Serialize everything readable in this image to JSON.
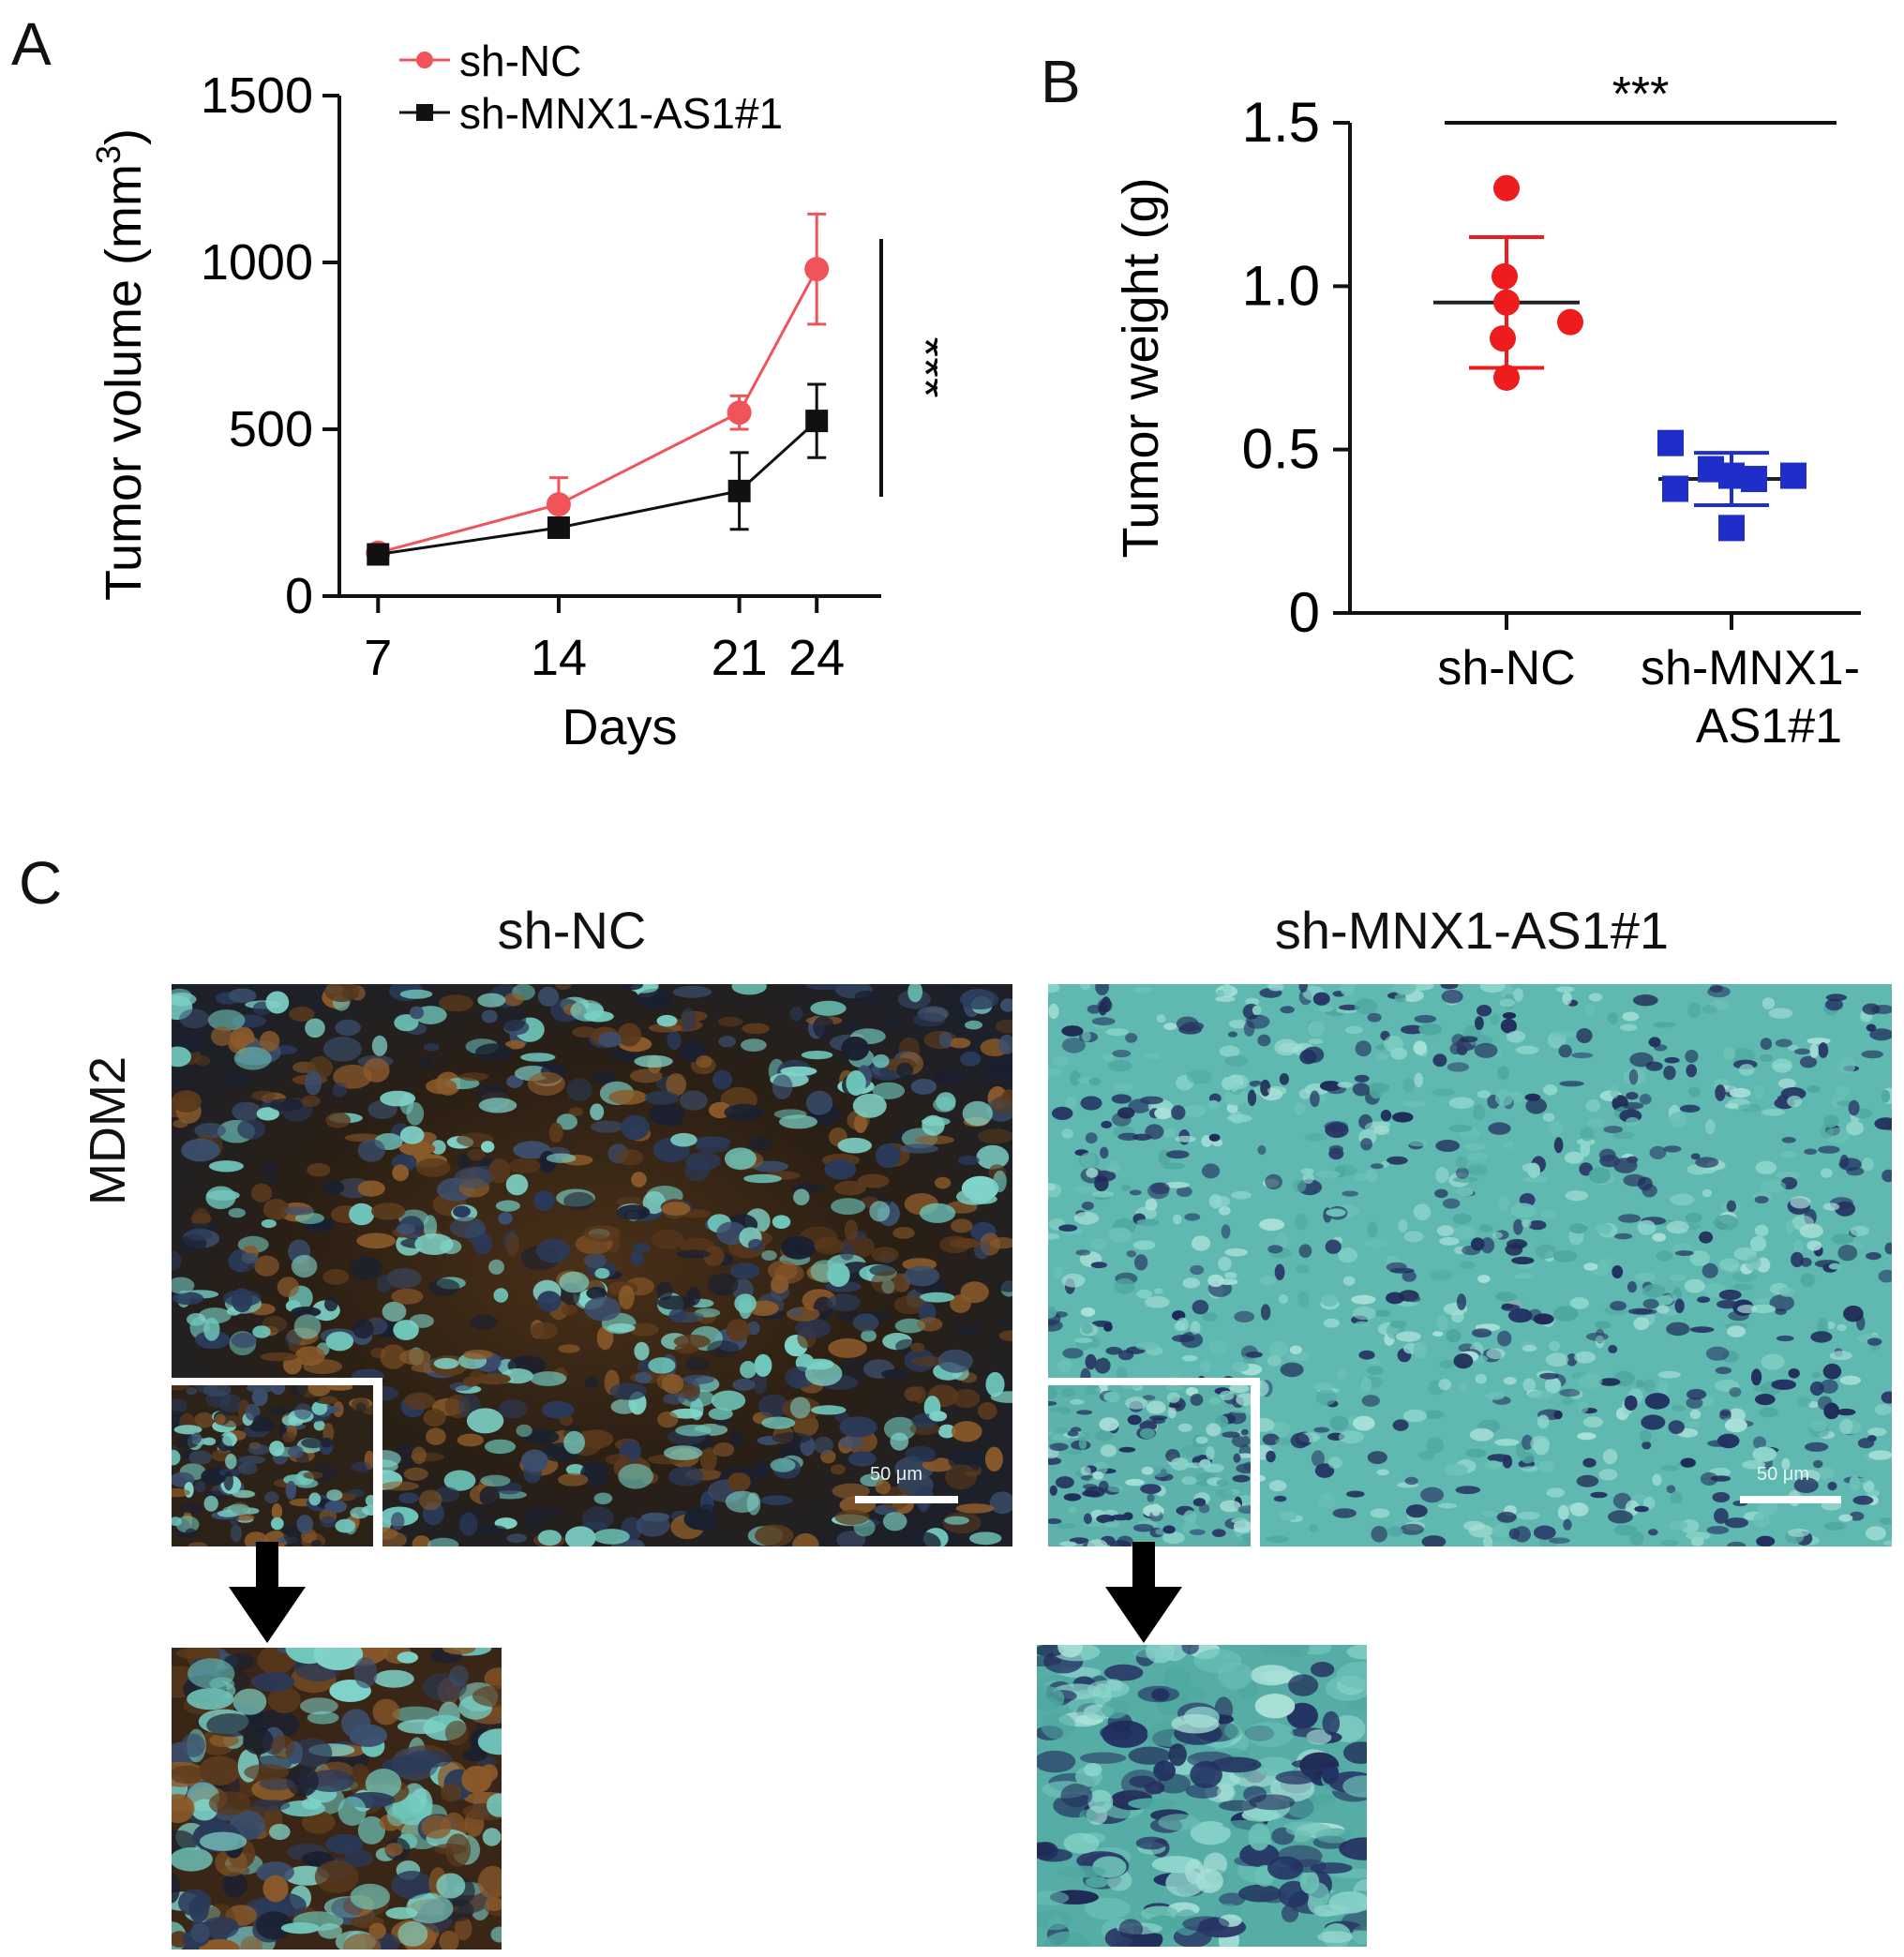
{
  "panel_labels": {
    "a": "A",
    "b": "B",
    "c": "C"
  },
  "chart_data": [
    {
      "type": "line",
      "panel": "A",
      "xlabel": "Days",
      "ylabel": "Tumor volume (mm³)",
      "ylabel_main": "Tumor volume (mm",
      "ylabel_sup": "3",
      "ylabel_tail": ")",
      "x": [
        7,
        14,
        21,
        24
      ],
      "x_tick_labels": [
        "7",
        "14",
        "21",
        "24"
      ],
      "ylim": [
        0,
        1500
      ],
      "y_ticks": [
        0,
        500,
        1000,
        1500
      ],
      "y_tick_labels": [
        "0",
        "500",
        "1000",
        "1500"
      ],
      "significance": "***",
      "series": [
        {
          "name": "sh-NC",
          "color": "#f0545a",
          "marker": "circle",
          "values": [
            130,
            275,
            550,
            980
          ],
          "error": [
            20,
            80,
            50,
            165
          ]
        },
        {
          "name": "sh-MNX1-AS1#1",
          "color": "#111111",
          "marker": "square",
          "values": [
            125,
            205,
            315,
            525
          ],
          "error": [
            20,
            25,
            115,
            110
          ]
        }
      ]
    },
    {
      "type": "scatter",
      "panel": "B",
      "ylabel": "Tumor weight (g)",
      "ylim": [
        0,
        1.5
      ],
      "y_ticks": [
        0,
        0.5,
        1.0,
        1.5
      ],
      "y_tick_labels": [
        "0",
        "0.5",
        "1.0",
        "1.5"
      ],
      "categories": [
        "sh-NC",
        "sh-MNX1-AS1#1"
      ],
      "category_lines": [
        [
          "sh-NC"
        ],
        [
          "sh-MNX1-",
          "AS1#1"
        ]
      ],
      "significance": "***",
      "series": [
        {
          "name": "sh-NC",
          "color": "#ee1c1c",
          "marker": "circle",
          "points": [
            1.3,
            1.03,
            0.95,
            0.89,
            0.84,
            0.72
          ],
          "mean": 0.95,
          "sd_upper": 1.15,
          "sd_lower": 0.75
        },
        {
          "name": "sh-MNX1-AS1#1",
          "color": "#1f2ec8",
          "marker": "square",
          "points": [
            0.52,
            0.44,
            0.42,
            0.41,
            0.42,
            0.38,
            0.26
          ],
          "mean": 0.41,
          "sd_upper": 0.49,
          "sd_lower": 0.33
        }
      ]
    }
  ],
  "panel_c": {
    "left_title": "sh-NC",
    "right_title": "sh-MNX1-AS1#1",
    "row_label": "MDM2",
    "scale_bar_label": "50 μm"
  }
}
